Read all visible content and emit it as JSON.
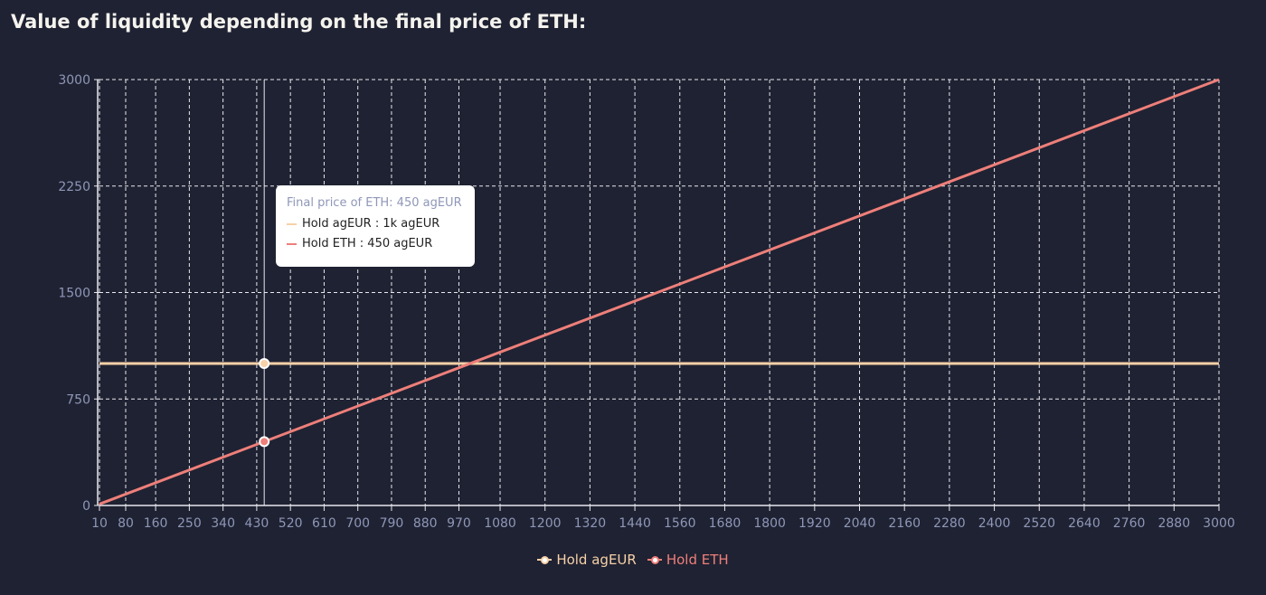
{
  "title": "Value of liquidity depending on the final price of ETH:",
  "chart_data": {
    "type": "line",
    "title": "Value of liquidity depending on the final price of ETH:",
    "xlabel": "",
    "ylabel": "",
    "x_ticks": [
      10,
      80,
      160,
      250,
      340,
      430,
      520,
      610,
      700,
      790,
      880,
      970,
      1080,
      1200,
      1320,
      1440,
      1560,
      1680,
      1800,
      1920,
      2040,
      2160,
      2280,
      2400,
      2520,
      2640,
      2760,
      2880,
      3000
    ],
    "y_ticks": [
      0,
      750,
      1500,
      2250,
      3000
    ],
    "xlim": [
      10,
      3000
    ],
    "ylim": [
      0,
      3000
    ],
    "grid": true,
    "legend_position": "bottom-center",
    "series": [
      {
        "name": "Hold agEUR",
        "color": "#f7d1a8",
        "x": [
          10,
          3000
        ],
        "y": [
          1000,
          1000
        ]
      },
      {
        "name": "Hold ETH",
        "color": "#ee7f7a",
        "x": [
          10,
          3000
        ],
        "y": [
          10,
          3000
        ]
      }
    ],
    "hover": {
      "x": 450,
      "values": [
        1000,
        450
      ]
    }
  },
  "tooltip": {
    "header": "Final price of ETH: 450 agEUR",
    "rows": [
      "Hold agEUR : 1k agEUR",
      "Hold ETH : 450 agEUR"
    ]
  },
  "legend": [
    "Hold agEUR",
    "Hold ETH"
  ]
}
